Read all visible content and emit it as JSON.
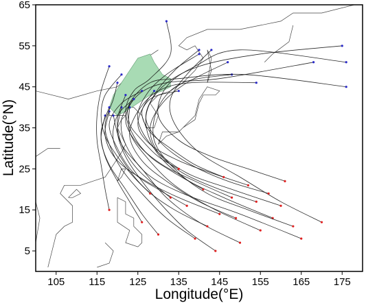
{
  "chart_data": {
    "type": "line",
    "title": "",
    "xlabel": "Longitude(°E)",
    "ylabel": "Latitude(°N)",
    "xlim": [
      100,
      180
    ],
    "ylim": [
      0,
      65
    ],
    "xticks": [
      "105",
      "115",
      "125",
      "135",
      "145",
      "155",
      "165",
      "175"
    ],
    "yticks": [
      "5",
      "15",
      "25",
      "35",
      "45",
      "55",
      "65"
    ],
    "grid": false,
    "start_marker_color": "#e02020",
    "end_marker_color": "#2a2ac8",
    "track_color": "#111111",
    "highlight_region_color": "#a8dbb4",
    "highlight_region": [
      [
        118,
        40
      ],
      [
        119,
        43
      ],
      [
        121,
        46
      ],
      [
        123,
        49
      ],
      [
        125,
        52
      ],
      [
        128,
        53
      ],
      [
        129,
        51
      ],
      [
        131,
        48
      ],
      [
        133,
        47
      ],
      [
        133,
        45
      ],
      [
        131,
        44
      ],
      [
        128,
        43
      ],
      [
        125,
        41
      ],
      [
        122,
        39
      ],
      [
        120,
        38
      ]
    ],
    "tracks": [
      [
        [
          170,
          12
        ],
        [
          160,
          17
        ],
        [
          150,
          23
        ],
        [
          140,
          29
        ],
        [
          134,
          36
        ],
        [
          133,
          42
        ],
        [
          137,
          48
        ],
        [
          143,
          54
        ]
      ],
      [
        [
          165,
          8
        ],
        [
          150,
          14
        ],
        [
          136,
          19
        ],
        [
          127,
          24
        ],
        [
          122,
          31
        ],
        [
          121,
          37
        ],
        [
          124,
          42
        ]
      ],
      [
        [
          160,
          16
        ],
        [
          148,
          20
        ],
        [
          137,
          24
        ],
        [
          129,
          30
        ],
        [
          125,
          37
        ],
        [
          127,
          43
        ],
        [
          132,
          48
        ],
        [
          140,
          53
        ]
      ],
      [
        [
          155,
          10
        ],
        [
          144,
          15
        ],
        [
          134,
          21
        ],
        [
          127,
          28
        ],
        [
          123,
          34
        ],
        [
          123,
          40
        ]
      ],
      [
        [
          150,
          7
        ],
        [
          140,
          12
        ],
        [
          132,
          18
        ],
        [
          126,
          25
        ],
        [
          121,
          31
        ],
        [
          119,
          38
        ]
      ],
      [
        [
          158,
          13
        ],
        [
          146,
          18
        ],
        [
          136,
          23
        ],
        [
          129,
          30
        ],
        [
          127,
          38
        ],
        [
          131,
          45
        ],
        [
          140,
          50
        ],
        [
          155,
          53
        ],
        [
          175,
          55
        ]
      ],
      [
        [
          163,
          11
        ],
        [
          152,
          15
        ],
        [
          142,
          19
        ],
        [
          134,
          25
        ],
        [
          129,
          32
        ],
        [
          130,
          40
        ],
        [
          136,
          46
        ],
        [
          148,
          48
        ]
      ],
      [
        [
          145,
          14
        ],
        [
          135,
          18
        ],
        [
          127,
          22
        ],
        [
          120,
          27
        ],
        [
          117,
          33
        ],
        [
          118,
          39
        ]
      ],
      [
        [
          148,
          18
        ],
        [
          139,
          22
        ],
        [
          131,
          26
        ],
        [
          125,
          31
        ],
        [
          122,
          37
        ],
        [
          125,
          43
        ],
        [
          132,
          46
        ],
        [
          145,
          47
        ],
        [
          168,
          51
        ]
      ],
      [
        [
          139,
          8
        ],
        [
          132,
          13
        ],
        [
          126,
          19
        ],
        [
          121,
          25
        ],
        [
          118,
          31
        ],
        [
          117,
          36
        ],
        [
          119,
          42
        ],
        [
          120,
          46
        ]
      ],
      [
        [
          152,
          21
        ],
        [
          143,
          24
        ],
        [
          135,
          27
        ],
        [
          128,
          31
        ],
        [
          125,
          36
        ],
        [
          128,
          42
        ],
        [
          135,
          44
        ]
      ],
      [
        [
          142,
          11
        ],
        [
          134,
          15
        ],
        [
          127,
          20
        ],
        [
          122,
          26
        ],
        [
          119,
          32
        ],
        [
          120,
          38
        ],
        [
          124,
          42
        ]
      ],
      [
        [
          137,
          16
        ],
        [
          130,
          20
        ],
        [
          124,
          24
        ],
        [
          120,
          30
        ],
        [
          118,
          36
        ],
        [
          121,
          41
        ],
        [
          126,
          44
        ]
      ],
      [
        [
          157,
          19
        ],
        [
          147,
          22
        ],
        [
          138,
          26
        ],
        [
          131,
          31
        ],
        [
          127,
          37
        ],
        [
          129,
          43
        ],
        [
          134,
          49
        ],
        [
          140,
          54
        ]
      ],
      [
        [
          130,
          9
        ],
        [
          126,
          14
        ],
        [
          122,
          20
        ],
        [
          118,
          26
        ],
        [
          116,
          32
        ],
        [
          117,
          38
        ]
      ],
      [
        [
          161,
          22
        ],
        [
          152,
          25
        ],
        [
          143,
          28
        ],
        [
          135,
          32
        ],
        [
          130,
          38
        ],
        [
          132,
          45
        ],
        [
          139,
          50
        ],
        [
          150,
          54
        ],
        [
          176,
          51
        ]
      ],
      [
        [
          144,
          5
        ],
        [
          137,
          10
        ],
        [
          131,
          16
        ],
        [
          126,
          22
        ],
        [
          122,
          28
        ],
        [
          120,
          34
        ],
        [
          121,
          40
        ]
      ],
      [
        [
          133,
          18
        ],
        [
          128,
          22
        ],
        [
          124,
          26
        ],
        [
          121,
          31
        ],
        [
          120,
          37
        ],
        [
          122,
          43
        ]
      ],
      [
        [
          149,
          13
        ],
        [
          140,
          17
        ],
        [
          132,
          22
        ],
        [
          126,
          27
        ],
        [
          123,
          33
        ],
        [
          125,
          39
        ],
        [
          130,
          44
        ],
        [
          138,
          46
        ],
        [
          154,
          46
        ]
      ],
      [
        [
          126,
          12
        ],
        [
          123,
          17
        ],
        [
          120,
          22
        ],
        [
          117,
          28
        ],
        [
          116,
          34
        ],
        [
          118,
          40
        ]
      ],
      [
        [
          154,
          17
        ],
        [
          145,
          20
        ],
        [
          136,
          24
        ],
        [
          130,
          29
        ],
        [
          128,
          35
        ],
        [
          131,
          41
        ],
        [
          137,
          46
        ],
        [
          147,
          51
        ]
      ],
      [
        [
          146,
          23
        ],
        [
          139,
          26
        ],
        [
          133,
          30
        ],
        [
          128,
          34
        ],
        [
          126,
          39
        ],
        [
          129,
          44
        ]
      ],
      [
        [
          135,
          25
        ],
        [
          130,
          28
        ],
        [
          126,
          32
        ],
        [
          123,
          36
        ],
        [
          123,
          41
        ],
        [
          128,
          46
        ],
        [
          135,
          47
        ],
        [
          151,
          48
        ],
        [
          176,
          45
        ]
      ],
      [
        [
          141,
          20
        ],
        [
          134,
          24
        ],
        [
          128,
          28
        ],
        [
          124,
          33
        ],
        [
          122,
          39
        ],
        [
          124,
          44
        ],
        [
          128,
          47
        ],
        [
          133,
          53
        ],
        [
          132,
          61
        ]
      ],
      [
        [
          118,
          15
        ],
        [
          117,
          20
        ],
        [
          116,
          26
        ],
        [
          115,
          32
        ],
        [
          115,
          38
        ],
        [
          116,
          44
        ],
        [
          118,
          50
        ]
      ],
      [
        [
          128,
          19
        ],
        [
          124,
          23
        ],
        [
          120,
          28
        ],
        [
          117,
          33
        ],
        [
          116,
          38
        ],
        [
          117,
          43
        ],
        [
          121,
          48
        ]
      ]
    ]
  }
}
